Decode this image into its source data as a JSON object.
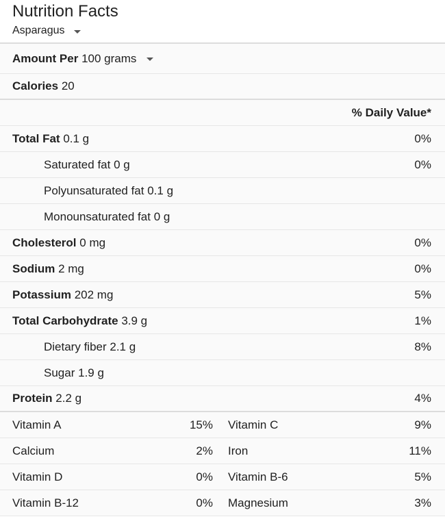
{
  "header": {
    "title": "Nutrition Facts",
    "food": "Asparagus"
  },
  "amount": {
    "label": "Amount Per",
    "value": "100 grams"
  },
  "calories": {
    "label": "Calories",
    "value": "20"
  },
  "daily_value_header": "% Daily Value*",
  "nutrients": [
    {
      "name": "Total Fat",
      "amount": "0.1 g",
      "pct": "0%"
    },
    {
      "name": "Saturated fat",
      "amount": "0 g",
      "pct": "0%"
    },
    {
      "name": "Polyunsaturated fat",
      "amount": "0.1 g",
      "pct": ""
    },
    {
      "name": "Monounsaturated fat",
      "amount": "0 g",
      "pct": ""
    },
    {
      "name": "Cholesterol",
      "amount": "0 mg",
      "pct": "0%"
    },
    {
      "name": "Sodium",
      "amount": "2 mg",
      "pct": "0%"
    },
    {
      "name": "Potassium",
      "amount": "202 mg",
      "pct": "5%"
    },
    {
      "name": "Total Carbohydrate",
      "amount": "3.9 g",
      "pct": "1%"
    },
    {
      "name": "Dietary fiber",
      "amount": "2.1 g",
      "pct": "8%"
    },
    {
      "name": "Sugar",
      "amount": "1.9 g",
      "pct": ""
    },
    {
      "name": "Protein",
      "amount": "2.2 g",
      "pct": "4%"
    }
  ],
  "vitamins": [
    {
      "left_name": "Vitamin A",
      "left_pct": "15%",
      "right_name": "Vitamin C",
      "right_pct": "9%"
    },
    {
      "left_name": "Calcium",
      "left_pct": "2%",
      "right_name": "Iron",
      "right_pct": "11%"
    },
    {
      "left_name": "Vitamin D",
      "left_pct": "0%",
      "right_name": "Vitamin B-6",
      "right_pct": "5%"
    },
    {
      "left_name": "Vitamin B-12",
      "left_pct": "0%",
      "right_name": "Magnesium",
      "right_pct": "3%"
    }
  ],
  "icons": {
    "food_dropdown": "chevron-down-icon",
    "amount_dropdown": "chevron-down-icon"
  }
}
